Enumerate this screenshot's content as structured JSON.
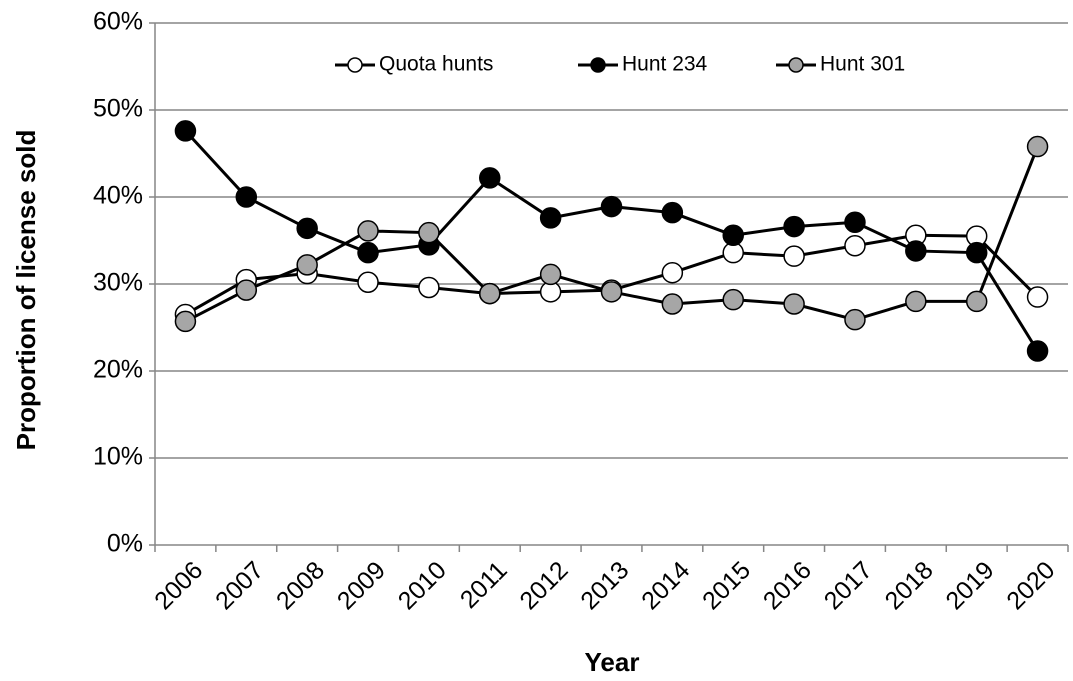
{
  "chart_data": {
    "type": "line",
    "x_label": "Year",
    "y_label": "Proportion of license sold",
    "categories": [
      "2006",
      "2007",
      "2008",
      "2009",
      "2010",
      "2011",
      "2012",
      "2013",
      "2014",
      "2015",
      "2016",
      "2017",
      "2018",
      "2019",
      "2020"
    ],
    "series": [
      {
        "name": "Quota hunts",
        "color": "#ffffff",
        "values": [
          26.5,
          30.5,
          31.2,
          30.2,
          29.6,
          28.9,
          29.1,
          29.3,
          31.3,
          33.6,
          33.2,
          34.4,
          35.6,
          35.5,
          28.5
        ]
      },
      {
        "name": "Hunt 234",
        "color": "#000000",
        "values": [
          47.6,
          40.0,
          36.4,
          33.6,
          34.5,
          42.2,
          37.6,
          38.9,
          38.2,
          35.6,
          36.6,
          37.1,
          33.8,
          33.6,
          22.3
        ]
      },
      {
        "name": "Hunt 301",
        "color": "#a6a6a6",
        "values": [
          25.7,
          29.3,
          32.2,
          36.1,
          35.9,
          28.9,
          31.1,
          29.1,
          27.7,
          28.2,
          27.7,
          25.9,
          28.0,
          28.0,
          45.8
        ]
      }
    ],
    "ylim": [
      0,
      60
    ],
    "yticks": [
      {
        "value": 0,
        "label": "0%"
      },
      {
        "value": 10,
        "label": "10%"
      },
      {
        "value": 20,
        "label": "20%"
      },
      {
        "value": 30,
        "label": "30%"
      },
      {
        "value": 40,
        "label": "40%"
      },
      {
        "value": 50,
        "label": "50%"
      },
      {
        "value": 60,
        "label": "60%"
      }
    ],
    "grid": true,
    "legend": "top"
  }
}
